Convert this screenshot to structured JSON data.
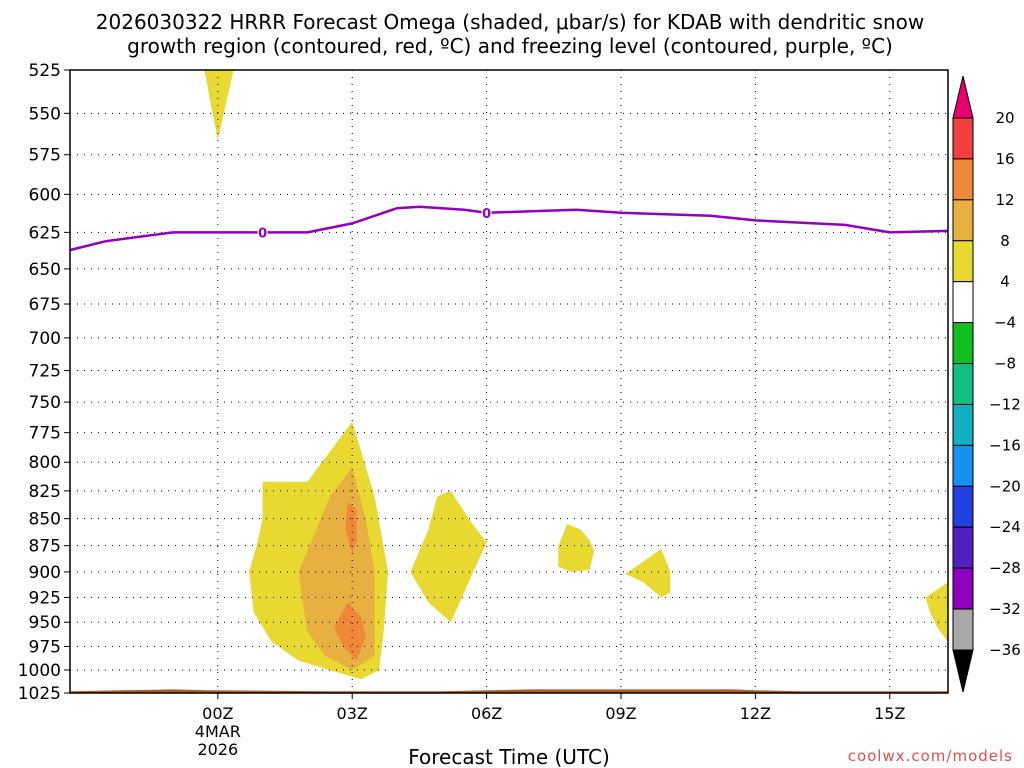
{
  "chart_data": {
    "type": "heatmap",
    "title_line1": "2026030322 HRRR Forecast Omega (shaded, μbar/s) for KDAB with dendritic snow",
    "title_line2": "growth region (contoured, red, ºC) and freezing level (contoured, purple, ºC)",
    "xlabel": "Forecast Time (UTC)",
    "ylabel": "",
    "y_units": "hPa",
    "x_units": "hours after 00Z 4 MAR 2026",
    "xlim": [
      -3.3,
      16.3
    ],
    "ylim": [
      1025,
      525
    ],
    "y_ticks": [
      525,
      550,
      575,
      600,
      625,
      650,
      675,
      700,
      725,
      750,
      775,
      800,
      825,
      850,
      875,
      900,
      925,
      950,
      975,
      1000,
      1025
    ],
    "x_ticks": [
      {
        "hour": 0,
        "label": "00Z",
        "sub1": "4MAR",
        "sub2": "2026"
      },
      {
        "hour": 3,
        "label": "03Z"
      },
      {
        "hour": 6,
        "label": "06Z"
      },
      {
        "hour": 9,
        "label": "09Z"
      },
      {
        "hour": 12,
        "label": "12Z"
      },
      {
        "hour": 15,
        "label": "15Z"
      }
    ],
    "grid": true,
    "colorbar": {
      "labels": [
        "20",
        "16",
        "12",
        "8",
        "4",
        "−4",
        "−8",
        "−12",
        "−16",
        "−20",
        "−24",
        "−28",
        "−32",
        "−36"
      ],
      "bounds": [
        24,
        20,
        16,
        12,
        8,
        4,
        -4,
        -8,
        -12,
        -16,
        -20,
        -24,
        -28,
        -32,
        -36,
        -40
      ],
      "colors": [
        "#e8006e",
        "#f24040",
        "#f08838",
        "#e8b040",
        "#e8d830",
        "#ffffff",
        "#10c020",
        "#10c080",
        "#10b0c0",
        "#1890f0",
        "#2040e0",
        "#5020c0",
        "#9000c0",
        "#a8a8a8",
        "#000000"
      ]
    },
    "omega_regions": [
      {
        "level": 4,
        "color": "#e8d830",
        "points": [
          [
            -0.3,
            525
          ],
          [
            0.35,
            525
          ],
          [
            0.0,
            566
          ]
        ]
      },
      {
        "level": 4,
        "color": "#e8d830",
        "points": [
          [
            1.0,
            817
          ],
          [
            2.0,
            817
          ],
          [
            3.0,
            766
          ],
          [
            3.5,
            830
          ],
          [
            3.8,
            900
          ],
          [
            3.7,
            960
          ],
          [
            3.6,
            1000
          ],
          [
            3.2,
            1010
          ],
          [
            2.5,
            1000
          ],
          [
            1.8,
            990
          ],
          [
            1.2,
            970
          ],
          [
            0.8,
            940
          ],
          [
            0.7,
            900
          ],
          [
            0.9,
            870
          ],
          [
            1.0,
            850
          ]
        ]
      },
      {
        "level": 8,
        "color": "#e8b040",
        "points": [
          [
            2.5,
            830
          ],
          [
            3.0,
            805
          ],
          [
            3.3,
            850
          ],
          [
            3.5,
            900
          ],
          [
            3.5,
            950
          ],
          [
            3.5,
            985
          ],
          [
            3.0,
            1000
          ],
          [
            2.4,
            985
          ],
          [
            2.0,
            960
          ],
          [
            1.9,
            930
          ],
          [
            1.8,
            900
          ],
          [
            2.2,
            860
          ]
        ]
      },
      {
        "level": 12,
        "color": "#f08838",
        "points": [
          [
            2.9,
            835
          ],
          [
            3.1,
            842
          ],
          [
            3.1,
            870
          ],
          [
            3.0,
            882
          ],
          [
            2.85,
            860
          ]
        ]
      },
      {
        "level": 12,
        "color": "#f08838",
        "points": [
          [
            2.9,
            930
          ],
          [
            3.2,
            945
          ],
          [
            3.3,
            965
          ],
          [
            3.1,
            990
          ],
          [
            2.8,
            975
          ],
          [
            2.6,
            955
          ]
        ]
      },
      {
        "level": 4,
        "color": "#e8d830",
        "points": [
          [
            4.9,
            830
          ],
          [
            5.2,
            825
          ],
          [
            5.6,
            850
          ],
          [
            6.0,
            872
          ],
          [
            5.7,
            900
          ],
          [
            5.2,
            950
          ],
          [
            4.7,
            930
          ],
          [
            4.3,
            900
          ],
          [
            4.7,
            860
          ]
        ]
      },
      {
        "level": 4,
        "color": "#e8d830",
        "points": [
          [
            7.8,
            855
          ],
          [
            8.1,
            860
          ],
          [
            8.3,
            870
          ],
          [
            8.4,
            880
          ],
          [
            8.3,
            898
          ],
          [
            7.9,
            900
          ],
          [
            7.6,
            895
          ],
          [
            7.6,
            875
          ]
        ]
      },
      {
        "level": 4,
        "color": "#e8d830",
        "points": [
          [
            9.9,
            878
          ],
          [
            10.1,
            900
          ],
          [
            10.1,
            920
          ],
          [
            9.9,
            925
          ],
          [
            9.5,
            910
          ],
          [
            9.1,
            902
          ],
          [
            9.5,
            890
          ]
        ]
      },
      {
        "level": 4,
        "color": "#e8d830",
        "points": [
          [
            15.8,
            925
          ],
          [
            16.3,
            910
          ],
          [
            16.3,
            970
          ],
          [
            16.1,
            958
          ],
          [
            15.9,
            940
          ]
        ]
      }
    ],
    "freezing_level": {
      "label": "0",
      "color": "#9000c0",
      "label_hours": [
        1.0,
        6.0
      ],
      "points": [
        [
          -3.3,
          637
        ],
        [
          -2.5,
          631
        ],
        [
          -1.0,
          625
        ],
        [
          1.0,
          625
        ],
        [
          2.0,
          625
        ],
        [
          3.0,
          619
        ],
        [
          4.0,
          609
        ],
        [
          4.5,
          608
        ],
        [
          5.5,
          610
        ],
        [
          6.0,
          612
        ],
        [
          7.0,
          611
        ],
        [
          8.0,
          610
        ],
        [
          9.0,
          612
        ],
        [
          11.0,
          614
        ],
        [
          12.0,
          617
        ],
        [
          14.0,
          620
        ],
        [
          15.0,
          625
        ],
        [
          16.3,
          624
        ]
      ]
    },
    "terrain": {
      "color": "#b05a28",
      "points": [
        [
          -3.3,
          1023
        ],
        [
          -1.0,
          1021
        ],
        [
          -0.2,
          1022
        ],
        [
          2.5,
          1023
        ],
        [
          5.0,
          1023
        ],
        [
          7.0,
          1021
        ],
        [
          9.0,
          1021
        ],
        [
          11.5,
          1021
        ],
        [
          12.0,
          1022
        ],
        [
          13.0,
          1023
        ],
        [
          16.3,
          1023
        ]
      ]
    },
    "credit": "coolwx.com/models"
  }
}
